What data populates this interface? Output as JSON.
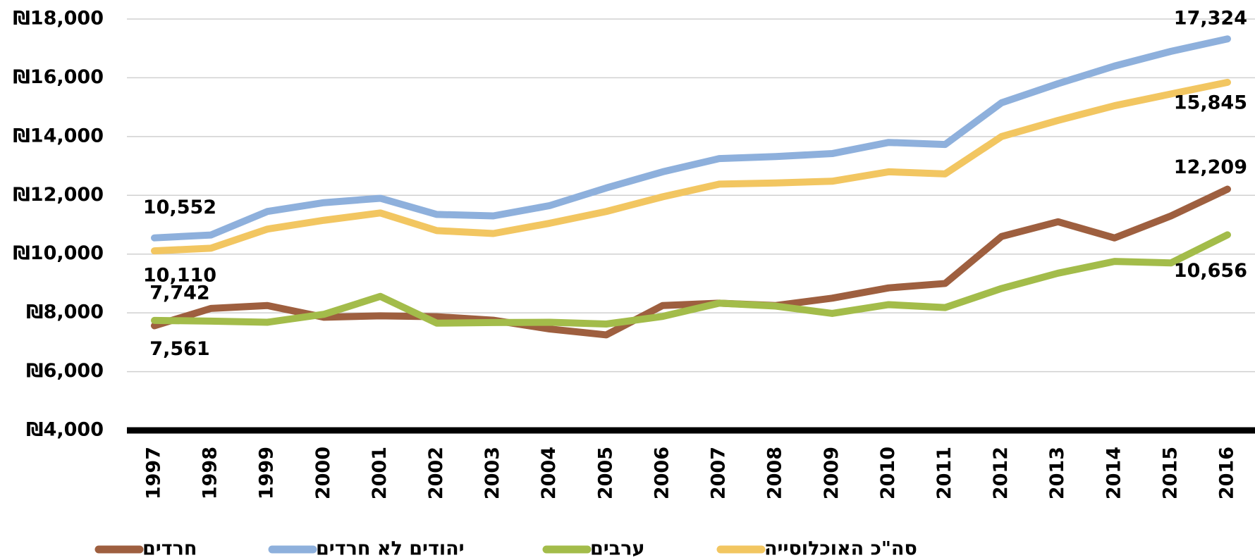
{
  "chart_data": {
    "type": "line",
    "categories": [
      "1997",
      "1998",
      "1999",
      "2000",
      "2001",
      "2002",
      "2003",
      "2004",
      "2005",
      "2006",
      "2007",
      "2008",
      "2009",
      "2010",
      "2011",
      "2012",
      "2013",
      "2014",
      "2015",
      "2016"
    ],
    "series": [
      {
        "name": "חרדים",
        "color": "#9e5f3f",
        "values": [
          7561,
          8150,
          8250,
          7850,
          7900,
          7870,
          7750,
          7450,
          7250,
          8250,
          8330,
          8250,
          8500,
          8850,
          9000,
          10600,
          11100,
          10550,
          11300,
          12209
        ],
        "value_labels": [
          "7,561",
          null,
          null,
          null,
          null,
          null,
          null,
          null,
          null,
          null,
          null,
          null,
          null,
          null,
          null,
          null,
          null,
          null,
          null,
          "12,209"
        ]
      },
      {
        "name": "יהודים לא חרדים",
        "color": "#8eb0dc",
        "values": [
          10552,
          10650,
          11450,
          11750,
          11900,
          11350,
          11300,
          11650,
          12250,
          12800,
          13250,
          13320,
          13420,
          13800,
          13730,
          15150,
          15800,
          16400,
          16900,
          17324
        ],
        "value_labels": [
          "10,552",
          null,
          null,
          null,
          null,
          null,
          null,
          null,
          null,
          null,
          null,
          null,
          null,
          null,
          null,
          null,
          null,
          null,
          null,
          "17,324"
        ]
      },
      {
        "name": "ערבים",
        "color": "#a3bc4a",
        "values": [
          7742,
          7720,
          7680,
          7950,
          8560,
          7650,
          7670,
          7680,
          7620,
          7880,
          8330,
          8230,
          7980,
          8280,
          8180,
          8830,
          9350,
          9750,
          9700,
          10656
        ],
        "value_labels": [
          "7,742",
          null,
          null,
          null,
          null,
          null,
          null,
          null,
          null,
          null,
          null,
          null,
          null,
          null,
          null,
          null,
          null,
          null,
          null,
          "10,656"
        ]
      },
      {
        "name": "סה\"כ האוכלוסייה",
        "color": "#f2c661",
        "values": [
          10110,
          10200,
          10850,
          11150,
          11400,
          10800,
          10700,
          11050,
          11450,
          11950,
          12380,
          12420,
          12480,
          12800,
          12730,
          14000,
          14550,
          15050,
          15450,
          15845
        ],
        "value_labels": [
          "10,110",
          null,
          null,
          null,
          null,
          null,
          null,
          null,
          null,
          null,
          null,
          null,
          null,
          null,
          null,
          null,
          null,
          null,
          null,
          "15,845"
        ]
      }
    ],
    "ylim": [
      4000,
      18000
    ],
    "yticks": [
      {
        "value": 4000,
        "label": "₪4,000"
      },
      {
        "value": 6000,
        "label": "₪6,000"
      },
      {
        "value": 8000,
        "label": "₪8,000"
      },
      {
        "value": 10000,
        "label": "₪10,000"
      },
      {
        "value": 12000,
        "label": "₪12,000"
      },
      {
        "value": 14000,
        "label": "₪14,000"
      },
      {
        "value": 16000,
        "label": "₪16,000"
      },
      {
        "value": 18000,
        "label": "₪18,000"
      }
    ],
    "grid": true,
    "legend": "bottom"
  }
}
